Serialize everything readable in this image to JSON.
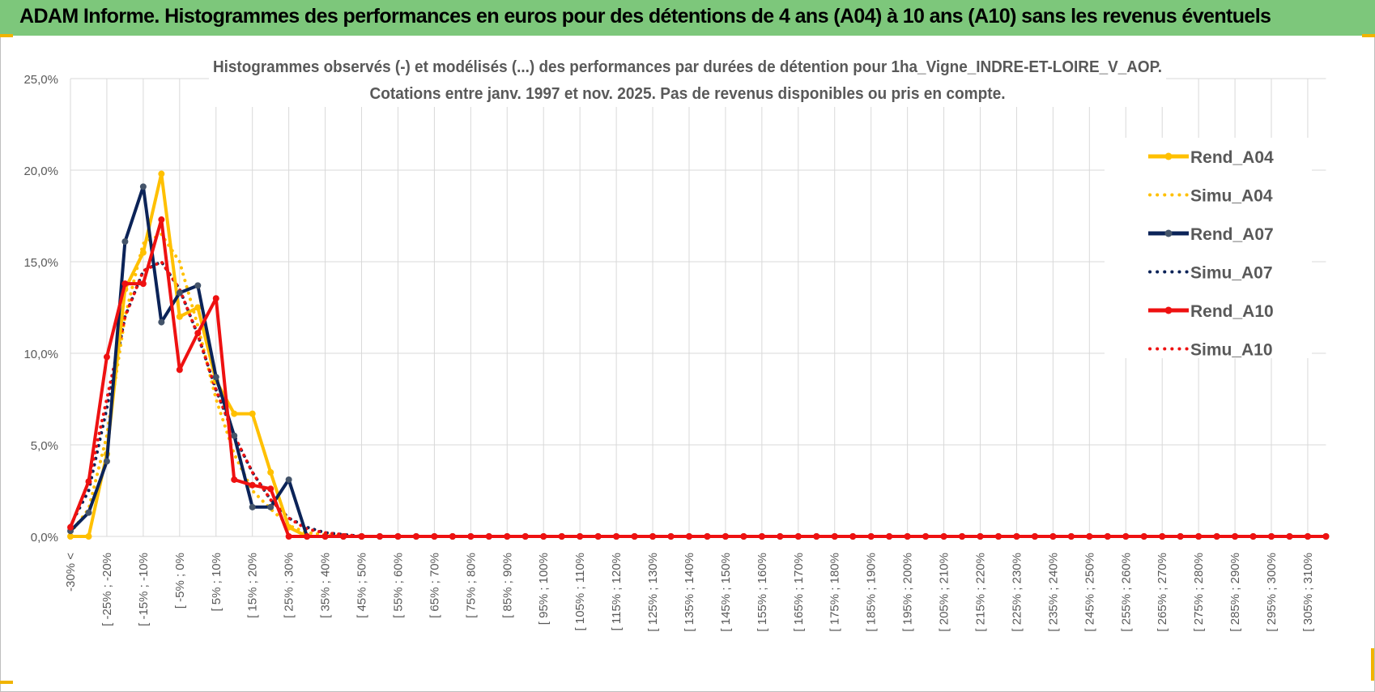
{
  "header": {
    "title": "ADAM Informe. Histogrammes des performances en euros pour des détentions de 4 ans (A04) à 10 ans (A10) sans les revenus éventuels"
  },
  "colors": {
    "header_bg": "#7dc77b",
    "a04": "#ffc000",
    "a07": "#0b2358",
    "a10": "#ee1111",
    "grid": "#d9d9d9"
  },
  "chart_data": {
    "type": "line",
    "title": "Histogrammes observés (-) et modélisés (...) des performances par durées de détention pour 1ha_Vigne_INDRE-ET-LOIRE_V_AOP.",
    "subtitle": "Cotations entre janv. 1997 et nov. 2025. Pas de revenus disponibles ou pris en compte.",
    "xlabel": "",
    "ylabel": "",
    "ylim": [
      0,
      25
    ],
    "yticks": [
      "0,0%",
      "5,0%",
      "10,0%",
      "15,0%",
      "20,0%",
      "25,0%"
    ],
    "grid": true,
    "legend_position": "right",
    "x_labels_shown": [
      "-30% <",
      "[ -25% ; -20%",
      "[ -15% ; -10%",
      "[ -5% ; 0%",
      "[ 5% ; 10%",
      "[ 15% ; 20%",
      "[ 25% ; 30%",
      "[ 35% ; 40%",
      "[ 45% ; 50%",
      "[ 55% ; 60%",
      "[ 65% ; 70%",
      "[ 75% ; 80%",
      "[ 85% ; 90%",
      "[ 95% ; 100%",
      "[ 105% ; 110%",
      "[ 115% ; 120%",
      "[ 125% ; 130%",
      "[ 135% ; 140%",
      "[ 145% ; 150%",
      "[ 155% ; 160%",
      "[ 165% ; 170%",
      "[ 175% ; 180%",
      "[ 185% ; 190%",
      "[ 195% ; 200%",
      "[ 205% ; 210%",
      "[ 215% ; 220%",
      "[ 225% ; 230%",
      "[ 235% ; 240%",
      "[ 245% ; 250%",
      "[ 255% ; 260%",
      "[ 265% ; 270%",
      "[ 275% ; 280%",
      "[ 285% ; 290%",
      "[ 295% ; 300%",
      "[ 305% ; 310%"
    ],
    "series": [
      {
        "name": "Rend_A04",
        "style": "solid",
        "values": [
          0,
          0,
          4.5,
          13.5,
          15.5,
          19.8,
          12.0,
          12.5,
          8.5,
          6.7,
          6.7,
          3.5,
          0.5,
          0,
          0,
          0,
          0,
          0,
          0,
          0,
          0,
          0,
          0,
          0,
          0,
          0,
          0,
          0,
          0,
          0,
          0,
          0,
          0,
          0,
          0,
          0,
          0,
          0,
          0,
          0,
          0,
          0,
          0,
          0,
          0,
          0,
          0,
          0,
          0,
          0,
          0,
          0,
          0,
          0,
          0,
          0,
          0,
          0,
          0,
          0,
          0,
          0,
          0,
          0,
          0,
          0,
          0,
          0,
          0,
          0
        ]
      },
      {
        "name": "Simu_A04",
        "style": "dotted",
        "values": [
          0.2,
          1.5,
          5.5,
          12.0,
          16.0,
          16.5,
          15.0,
          11.5,
          7.5,
          4.5,
          2.5,
          1.5,
          0.6,
          0.2,
          0.1,
          0,
          0,
          0,
          0,
          0,
          0,
          0,
          0,
          0,
          0,
          0,
          0,
          0,
          0,
          0,
          0,
          0,
          0,
          0,
          0,
          0,
          0,
          0,
          0,
          0,
          0,
          0,
          0,
          0,
          0,
          0,
          0,
          0,
          0,
          0,
          0,
          0,
          0,
          0,
          0,
          0,
          0,
          0,
          0,
          0,
          0,
          0,
          0,
          0,
          0,
          0,
          0,
          0,
          0,
          0
        ]
      },
      {
        "name": "Rend_A07",
        "style": "solid",
        "values": [
          0.3,
          1.3,
          4.1,
          16.1,
          19.1,
          11.7,
          13.3,
          13.7,
          8.7,
          5.5,
          1.6,
          1.6,
          3.1,
          0,
          0,
          0,
          0,
          0,
          0,
          0,
          0,
          0,
          0,
          0,
          0,
          0,
          0,
          0,
          0,
          0,
          0,
          0,
          0,
          0,
          0,
          0,
          0,
          0,
          0,
          0,
          0,
          0,
          0,
          0,
          0,
          0,
          0,
          0,
          0,
          0,
          0,
          0,
          0,
          0,
          0,
          0,
          0,
          0,
          0,
          0,
          0,
          0,
          0,
          0,
          0,
          0,
          0,
          0,
          0,
          0
        ]
      },
      {
        "name": "Simu_A07",
        "style": "dotted",
        "values": [
          0.6,
          2.5,
          7.0,
          12.0,
          14.5,
          15.0,
          13.5,
          11.0,
          8.0,
          5.5,
          3.5,
          2.0,
          1.0,
          0.5,
          0.2,
          0.1,
          0,
          0,
          0,
          0,
          0,
          0,
          0,
          0,
          0,
          0,
          0,
          0,
          0,
          0,
          0,
          0,
          0,
          0,
          0,
          0,
          0,
          0,
          0,
          0,
          0,
          0,
          0,
          0,
          0,
          0,
          0,
          0,
          0,
          0,
          0,
          0,
          0,
          0,
          0,
          0,
          0,
          0,
          0,
          0,
          0,
          0,
          0,
          0,
          0,
          0,
          0,
          0,
          0,
          0
        ]
      },
      {
        "name": "Rend_A10",
        "style": "solid",
        "values": [
          0.5,
          3.0,
          9.8,
          13.8,
          13.8,
          17.3,
          9.1,
          11.1,
          13.0,
          3.1,
          2.8,
          2.6,
          0,
          0,
          0,
          0,
          0,
          0,
          0,
          0,
          0,
          0,
          0,
          0,
          0,
          0,
          0,
          0,
          0,
          0,
          0,
          0,
          0,
          0,
          0,
          0,
          0,
          0,
          0,
          0,
          0,
          0,
          0,
          0,
          0,
          0,
          0,
          0,
          0,
          0,
          0,
          0,
          0,
          0,
          0,
          0,
          0,
          0,
          0,
          0,
          0,
          0,
          0,
          0,
          0,
          0,
          0,
          0,
          0,
          0
        ]
      },
      {
        "name": "Simu_A10",
        "style": "dotted",
        "values": [
          0.5,
          3.0,
          7.5,
          12.0,
          14.5,
          15.0,
          13.5,
          11.0,
          8.0,
          5.5,
          3.5,
          2.0,
          1.0,
          0.4,
          0.2,
          0.1,
          0,
          0,
          0,
          0,
          0,
          0,
          0,
          0,
          0,
          0,
          0,
          0,
          0,
          0,
          0,
          0,
          0,
          0,
          0,
          0,
          0,
          0,
          0,
          0,
          0,
          0,
          0,
          0,
          0,
          0,
          0,
          0,
          0,
          0,
          0,
          0,
          0,
          0,
          0,
          0,
          0,
          0,
          0,
          0,
          0,
          0,
          0,
          0,
          0,
          0,
          0,
          0,
          0,
          0
        ]
      }
    ]
  }
}
